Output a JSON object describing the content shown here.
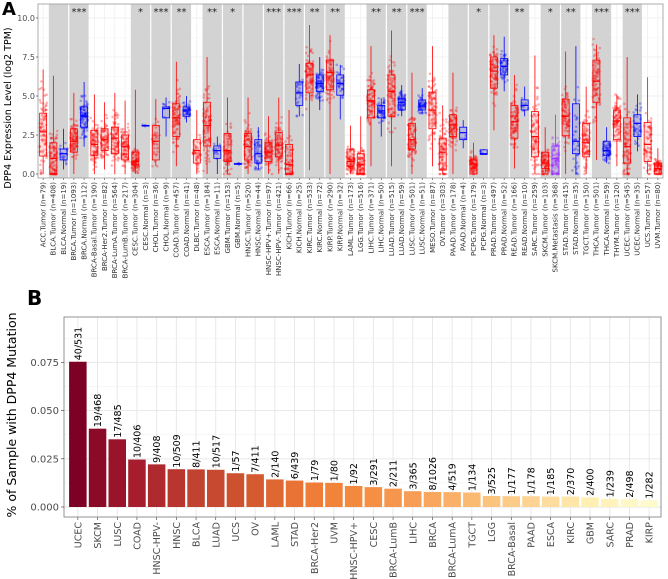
{
  "colors": {
    "tumor": "#ff0000",
    "normal": "#0000ff",
    "metastasis": "#9933ff",
    "band": "#d3d3d3",
    "bar_gradient": [
      "#7d0025",
      "#a51d2d",
      "#c0402f",
      "#d2562f",
      "#ee7b35",
      "#f48c40",
      "#f8a05a",
      "#fbbd74",
      "#fdd596",
      "#fff0b4",
      "#fffacc"
    ]
  },
  "chart_data": [
    {
      "panel": "A",
      "type": "box",
      "ylabel": "DPP4 Expression Level (log2 TPM)",
      "yticks": [
        0.0,
        2.5,
        5.0,
        7.5,
        10.0
      ],
      "ylim": [
        0,
        10.9
      ],
      "grid": true,
      "stats_order": [
        "min",
        "q1",
        "median",
        "q3",
        "max"
      ],
      "boxes": [
        {
          "label": "ACC.Tumor (n=79)",
          "group": "ACC",
          "kind": "tumor",
          "n": 79,
          "stats": [
            0,
            1.15,
            2.7,
            3.9,
            6.7
          ]
        },
        {
          "label": "BLCA.Tumor (n=408)",
          "group": "BLCA",
          "kind": "tumor",
          "n": 408,
          "stats": [
            0,
            0,
            1.0,
            2.0,
            6.3
          ]
        },
        {
          "label": "BLCA.Normal (n=19)",
          "group": "BLCA",
          "kind": "normal",
          "n": 19,
          "stats": [
            0.3,
            0.9,
            1.3,
            1.6,
            2.9
          ]
        },
        {
          "label": "BRCA.Tumor (n=1093)",
          "group": "BRCA",
          "kind": "tumor",
          "n": 1093,
          "stats": [
            0,
            1.4,
            2.1,
            2.9,
            5.2
          ]
        },
        {
          "label": "BRCA.Normal (n=112)",
          "group": "BRCA",
          "kind": "normal",
          "n": 112,
          "stats": [
            1.75,
            3.0,
            3.7,
            4.3,
            5.9
          ]
        },
        {
          "label": "BRCA-Basal.Tumor (n=190)",
          "group": "BRCA-Basal",
          "kind": "tumor",
          "n": 190,
          "stats": [
            0,
            1.2,
            1.9,
            2.8,
            5.1
          ]
        },
        {
          "label": "BRCA-Her2.Tumor (n=82)",
          "group": "BRCA-Her2",
          "kind": "tumor",
          "n": 82,
          "stats": [
            0.3,
            1.5,
            2.2,
            2.9,
            4.6
          ]
        },
        {
          "label": "BRCA-LumA.Tumor (n=564)",
          "group": "BRCA-LumA",
          "kind": "tumor",
          "n": 564,
          "stats": [
            0,
            1.3,
            2.3,
            3.0,
            5.2
          ]
        },
        {
          "label": "BRCA-LumB.Tumor (n=217)",
          "group": "BRCA-LumB",
          "kind": "tumor",
          "n": 217,
          "stats": [
            0,
            0.9,
            1.75,
            2.5,
            4.7
          ]
        },
        {
          "label": "CESC.Tumor (n=304)",
          "group": "CESC",
          "kind": "tumor",
          "n": 304,
          "stats": [
            0,
            0.6,
            0.8,
            1.4,
            5.4
          ]
        },
        {
          "label": "CESC.Normal (n=3)",
          "group": "CESC",
          "kind": "normal",
          "n": 3,
          "stats": [
            3.05,
            3.08,
            3.1,
            3.12,
            3.15
          ]
        },
        {
          "label": "CHOL.Tumor (n=36)",
          "group": "CHOL",
          "kind": "tumor",
          "n": 36,
          "stats": [
            0.5,
            0.9,
            2.1,
            3.1,
            4.8
          ]
        },
        {
          "label": "CHOL.Normal (n=9)",
          "group": "CHOL",
          "kind": "normal",
          "n": 9,
          "stats": [
            2.4,
            3.6,
            4.2,
            4.3,
            4.9
          ]
        },
        {
          "label": "COAD.Tumor (n=457)",
          "group": "COAD",
          "kind": "tumor",
          "n": 457,
          "stats": [
            0.5,
            2.4,
            3.6,
            4.5,
            7.2
          ]
        },
        {
          "label": "COAD.Normal (n=41)",
          "group": "COAD",
          "kind": "normal",
          "n": 41,
          "stats": [
            3.3,
            3.7,
            4.1,
            4.3,
            5.0
          ]
        },
        {
          "label": "DLBC.Tumor (n=48)",
          "group": "DLBC",
          "kind": "tumor",
          "n": 48,
          "stats": [
            0,
            0.7,
            1.5,
            2.2,
            4.1
          ]
        },
        {
          "label": "ESCA.Tumor (n=184)",
          "group": "ESCA",
          "kind": "tumor",
          "n": 184,
          "stats": [
            0,
            1.8,
            3.1,
            4.6,
            7.5
          ]
        },
        {
          "label": "ESCA.Normal (n=11)",
          "group": "ESCA",
          "kind": "normal",
          "n": 11,
          "stats": [
            0,
            1.0,
            1.5,
            1.8,
            2.4
          ]
        },
        {
          "label": "GBM.Tumor (n=153)",
          "group": "GBM",
          "kind": "tumor",
          "n": 153,
          "stats": [
            0,
            0.8,
            1.5,
            2.6,
            4.9
          ]
        },
        {
          "label": "GBM.Normal (n=5)",
          "group": "GBM",
          "kind": "normal",
          "n": 5,
          "stats": [
            0.6,
            0.63,
            0.65,
            0.67,
            0.7
          ]
        },
        {
          "label": "HNSC.Tumor (n=520)",
          "group": "HNSC",
          "kind": "tumor",
          "n": 520,
          "stats": [
            0,
            0.9,
            1.75,
            2.6,
            4.9
          ]
        },
        {
          "label": "HNSC.Normal (n=44)",
          "group": "HNSC",
          "kind": "normal",
          "n": 44,
          "stats": [
            0.3,
            0.7,
            1.3,
            2.2,
            3.0
          ]
        },
        {
          "label": "HNSC-HPV+.Tumor (n=97)",
          "group": "HNSC-HPV",
          "kind": "tumor",
          "n": 97,
          "stats": [
            0,
            0.8,
            1.4,
            2.0,
            3.7
          ]
        },
        {
          "label": "HNSC-HPV-.Tumor (n=421)",
          "group": "HNSC-HPV",
          "kind": "tumor",
          "n": 421,
          "stats": [
            0,
            1.1,
            1.85,
            2.65,
            4.9
          ]
        },
        {
          "label": "KICH.Tumor (n=66)",
          "group": "KICH",
          "kind": "tumor",
          "n": 66,
          "stats": [
            0,
            0,
            0.6,
            1.9,
            4.1
          ]
        },
        {
          "label": "KICH.Normal (n=25)",
          "group": "KICH",
          "kind": "normal",
          "n": 25,
          "stats": [
            3.7,
            4.4,
            5.2,
            5.9,
            7.05
          ]
        },
        {
          "label": "KIRC.Tumor (n=533)",
          "group": "KIRC",
          "kind": "tumor",
          "n": 533,
          "stats": [
            0.25,
            5.2,
            6.35,
            7.1,
            9.55
          ]
        },
        {
          "label": "KIRC.Normal (n=72)",
          "group": "KIRC",
          "kind": "normal",
          "n": 72,
          "stats": [
            4.1,
            5.3,
            5.8,
            6.35,
            7.5
          ]
        },
        {
          "label": "KIRP.Tumor (n=290)",
          "group": "KIRP",
          "kind": "tumor",
          "n": 290,
          "stats": [
            0,
            5.4,
            6.5,
            7.3,
            8.9
          ]
        },
        {
          "label": "KIRP.Normal (n=32)",
          "group": "KIRP",
          "kind": "normal",
          "n": 32,
          "stats": [
            3.5,
            5.05,
            5.8,
            6.35,
            7.0
          ]
        },
        {
          "label": "LAML.Tumor (n=173)",
          "group": "LAML",
          "kind": "tumor",
          "n": 173,
          "stats": [
            0,
            0.5,
            0.8,
            1.6,
            3.1
          ]
        },
        {
          "label": "LGG.Tumor (n=516)",
          "group": "LGG",
          "kind": "tumor",
          "n": 516,
          "stats": [
            0,
            0,
            0.6,
            1.3,
            3.7
          ]
        },
        {
          "label": "LIHC.Tumor (n=371)",
          "group": "LIHC",
          "kind": "tumor",
          "n": 371,
          "stats": [
            0.5,
            3.6,
            4.7,
            5.4,
            8.2
          ]
        },
        {
          "label": "LIHC.Normal (n=50)",
          "group": "LIHC",
          "kind": "normal",
          "n": 50,
          "stats": [
            2.4,
            3.6,
            4.05,
            4.4,
            4.85
          ]
        },
        {
          "label": "LUAD.Tumor (n=515)",
          "group": "LUAD",
          "kind": "tumor",
          "n": 515,
          "stats": [
            0.5,
            3.7,
            5.3,
            6.35,
            9.2
          ]
        },
        {
          "label": "LUAD.Normal (n=59)",
          "group": "LUAD",
          "kind": "normal",
          "n": 59,
          "stats": [
            3.7,
            4.1,
            4.6,
            4.85,
            5.7
          ]
        },
        {
          "label": "LUSC.Tumor (n=501)",
          "group": "LUSC",
          "kind": "tumor",
          "n": 501,
          "stats": [
            0,
            1.6,
            2.2,
            3.25,
            6.5
          ]
        },
        {
          "label": "LUSC.Normal (n=51)",
          "group": "LUSC",
          "kind": "normal",
          "n": 51,
          "stats": [
            3.9,
            4.1,
            4.35,
            4.75,
            5.5
          ]
        },
        {
          "label": "MESO.Tumor (n=87)",
          "group": "MESO",
          "kind": "tumor",
          "n": 87,
          "stats": [
            0.5,
            2.9,
            4.1,
            5.25,
            8.2
          ]
        },
        {
          "label": "OV.Tumor (n=303)",
          "group": "OV",
          "kind": "tumor",
          "n": 303,
          "stats": [
            0,
            0.25,
            1.4,
            2.3,
            4.4
          ]
        },
        {
          "label": "PAAD.Tumor (n=178)",
          "group": "PAAD",
          "kind": "tumor",
          "n": 178,
          "stats": [
            0,
            2.4,
            3.15,
            3.8,
            6.5
          ]
        },
        {
          "label": "PAAD.Normal (n=4)",
          "group": "PAAD",
          "kind": "normal",
          "n": 4,
          "stats": [
            1.65,
            2.2,
            2.65,
            3.0,
            3.45
          ]
        },
        {
          "label": "PCPG.Tumor (n=179)",
          "group": "PCPG",
          "kind": "tumor",
          "n": 179,
          "stats": [
            0,
            0,
            0.65,
            0.9,
            2.0
          ]
        },
        {
          "label": "PCPG.Normal (n=3)",
          "group": "PCPG",
          "kind": "normal",
          "n": 3,
          "stats": [
            1.25,
            1.25,
            1.3,
            1.55,
            1.6
          ]
        },
        {
          "label": "PRAD.Tumor (n=497)",
          "group": "PRAD",
          "kind": "tumor",
          "n": 497,
          "stats": [
            2.8,
            5.5,
            6.6,
            7.5,
            8.9
          ]
        },
        {
          "label": "PRAD.Normal (n=52)",
          "group": "PRAD",
          "kind": "normal",
          "n": 52,
          "stats": [
            5.3,
            6.35,
            6.9,
            7.4,
            8.8
          ]
        },
        {
          "label": "READ.Tumor (n=166)",
          "group": "READ",
          "kind": "tumor",
          "n": 166,
          "stats": [
            0.35,
            2.3,
            3.35,
            4.4,
            6.35
          ]
        },
        {
          "label": "READ.Normal (n=10)",
          "group": "READ",
          "kind": "normal",
          "n": 10,
          "stats": [
            3.7,
            4.1,
            4.4,
            4.75,
            5.6
          ]
        },
        {
          "label": "SARC.Tumor (n=259)",
          "group": "SARC",
          "kind": "tumor",
          "n": 259,
          "stats": [
            0,
            1.1,
            2.4,
            4.0,
            7.6
          ]
        },
        {
          "label": "SKCM.Tumor (n=103)",
          "group": "SKCM",
          "kind": "tumor",
          "n": 103,
          "stats": [
            0,
            0.35,
            0.7,
            1.4,
            3.0
          ]
        },
        {
          "label": "SKCM.Metastasis (n=368)",
          "group": "SKCM",
          "kind": "metastasis",
          "n": 368,
          "stats": [
            0,
            0,
            1.0,
            1.8,
            3.8
          ]
        },
        {
          "label": "STAD.Tumor (n=415)",
          "group": "STAD",
          "kind": "tumor",
          "n": 415,
          "stats": [
            0,
            2.45,
            3.7,
            4.8,
            7.85
          ]
        },
        {
          "label": "STAD.Normal (n=35)",
          "group": "STAD",
          "kind": "normal",
          "n": 35,
          "stats": [
            0,
            1.3,
            2.1,
            4.5,
            8.2
          ]
        },
        {
          "label": "TGCT.Tumor (n=150)",
          "group": "TGCT",
          "kind": "tumor",
          "n": 150,
          "stats": [
            0,
            1.1,
            2.0,
            3.25,
            5.6
          ]
        },
        {
          "label": "THCA.Tumor (n=501)",
          "group": "THCA",
          "kind": "tumor",
          "n": 501,
          "stats": [
            0.9,
            4.6,
            5.95,
            7.3,
            8.3
          ]
        },
        {
          "label": "THCA.Normal (n=59)",
          "group": "THCA",
          "kind": "normal",
          "n": 59,
          "stats": [
            0.7,
            1.2,
            1.5,
            2.1,
            3.0
          ]
        },
        {
          "label": "THYM.Tumor (n=120)",
          "group": "THYM",
          "kind": "tumor",
          "n": 120,
          "stats": [
            0.5,
            2.2,
            3.4,
            4.1,
            5.1
          ]
        },
        {
          "label": "UCEC.Tumor (n=545)",
          "group": "UCEC",
          "kind": "tumor",
          "n": 545,
          "stats": [
            0,
            0.7,
            1.75,
            3.6,
            7.5
          ]
        },
        {
          "label": "UCEC.Normal (n=35)",
          "group": "UCEC",
          "kind": "normal",
          "n": 35,
          "stats": [
            1.45,
            2.4,
            3.25,
            3.8,
            5.1
          ]
        },
        {
          "label": "UCS.Tumor (n=57)",
          "group": "UCS",
          "kind": "tumor",
          "n": 57,
          "stats": [
            0,
            0.8,
            1.9,
            3.3,
            6.2
          ]
        },
        {
          "label": "UVM.Tumor (n=80)",
          "group": "UVM",
          "kind": "tumor",
          "n": 80,
          "stats": [
            0,
            0,
            0.35,
            0.7,
            1.65
          ]
        }
      ],
      "shaded_groups": [
        "BLCA",
        "BRCA",
        "CESC",
        "CHOL",
        "COAD",
        "ESCA",
        "GBM",
        "HNSC",
        "HNSC-HPV",
        "KICH",
        "KIRC",
        "KIRP",
        "LIHC",
        "LUAD",
        "LUSC",
        "PAAD",
        "PCPG",
        "PRAD",
        "READ",
        "SKCM",
        "STAD",
        "THCA",
        "UCEC"
      ],
      "significance": {
        "BRCA": "***",
        "CESC": "*",
        "CHOL": "***",
        "COAD": "**",
        "ESCA": "**",
        "GBM": "*",
        "HNSC-HPV": "***",
        "KICH": "***",
        "KIRC": "**",
        "KIRP": "**",
        "LIHC": "**",
        "LUAD": "**",
        "LUSC": "***",
        "PCPG": "*",
        "READ": "**",
        "SKCM": "*",
        "STAD": "**",
        "THCA": "***",
        "UCEC": "***"
      }
    },
    {
      "panel": "B",
      "type": "bar",
      "ylabel": "% of Sample with DPP4 Mutation",
      "yticks": [
        0.0,
        0.025,
        0.05,
        0.075
      ],
      "ytick_labels": [
        "0.000",
        "0.025",
        "0.050",
        "0.075"
      ],
      "ylim": [
        0,
        0.0985
      ],
      "grid": true,
      "categories": [
        "UCEC",
        "SKCM",
        "LUSC",
        "COAD",
        "HNSC-HPV-",
        "HNSC",
        "BLCA",
        "LUAD",
        "UCS",
        "OV",
        "LAML",
        "STAD",
        "BRCA-Her2",
        "UVM",
        "HNSC-HPV+",
        "CESC",
        "BRCA-LumB",
        "LIHC",
        "BRCA",
        "BRCA-LumA",
        "TGCT",
        "LGG",
        "BRCA-Basal",
        "PAAD",
        "ESCA",
        "KIRC",
        "GBM",
        "SARC",
        "PRAD",
        "KIRP"
      ],
      "labels": [
        "40/531",
        "19/468",
        "17/485",
        "10/406",
        "9/408",
        "10/509",
        "8/411",
        "10/517",
        "1/57",
        "7/411",
        "2/140",
        "6/439",
        "1/79",
        "1/80",
        "1/92",
        "3/291",
        "2/211",
        "3/365",
        "8/1026",
        "4/519",
        "1/134",
        "3/525",
        "1/177",
        "1/178",
        "1/185",
        "2/370",
        "2/400",
        "1/239",
        "2/498",
        "1/282"
      ],
      "values": [
        0.0753,
        0.0406,
        0.0351,
        0.0246,
        0.0221,
        0.0196,
        0.0195,
        0.0193,
        0.0175,
        0.017,
        0.0143,
        0.0137,
        0.0127,
        0.0125,
        0.0109,
        0.0103,
        0.0095,
        0.0082,
        0.0078,
        0.0077,
        0.0075,
        0.0057,
        0.0056,
        0.0056,
        0.0054,
        0.0054,
        0.005,
        0.0042,
        0.004,
        0.0035
      ]
    }
  ],
  "panels": {
    "a_letter": "A",
    "b_letter": "B"
  }
}
